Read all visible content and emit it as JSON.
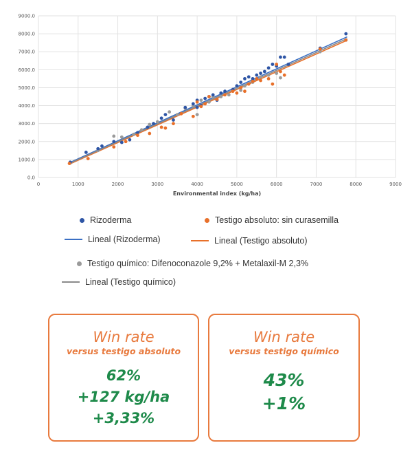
{
  "chart_data": {
    "type": "scatter",
    "xlabel": "Environmental index (kg/ha)",
    "xlim": [
      0,
      9000
    ],
    "ylim": [
      0,
      9000
    ],
    "xticks": [
      "0",
      "1000",
      "2000",
      "3000",
      "4000",
      "5000",
      "6000",
      "7000",
      "8000",
      "9000"
    ],
    "yticks": [
      "0.0",
      "1000.0",
      "2000.0",
      "3000.0",
      "4000.0",
      "5000.0",
      "6000.0",
      "7000.0",
      "8000.0",
      "9000.0"
    ],
    "grid": true,
    "legend_position": "bottom",
    "series": [
      {
        "name": "Rizoderma",
        "color": "#2e55a5",
        "points": [
          [
            800,
            850
          ],
          [
            1200,
            1400
          ],
          [
            1500,
            1600
          ],
          [
            1600,
            1750
          ],
          [
            1900,
            2000
          ],
          [
            2100,
            1950
          ],
          [
            2300,
            2100
          ],
          [
            2500,
            2500
          ],
          [
            2750,
            2800
          ],
          [
            2900,
            3000
          ],
          [
            3100,
            3300
          ],
          [
            3200,
            3500
          ],
          [
            3400,
            3200
          ],
          [
            3700,
            3900
          ],
          [
            3900,
            4100
          ],
          [
            4000,
            3900
          ],
          [
            4000,
            4300
          ],
          [
            4100,
            4000
          ],
          [
            4200,
            4400
          ],
          [
            4300,
            4500
          ],
          [
            4400,
            4600
          ],
          [
            4500,
            4300
          ],
          [
            4600,
            4700
          ],
          [
            4700,
            4800
          ],
          [
            4900,
            4900
          ],
          [
            5000,
            5100
          ],
          [
            5100,
            5300
          ],
          [
            5200,
            5500
          ],
          [
            5300,
            5600
          ],
          [
            5400,
            5500
          ],
          [
            5500,
            5700
          ],
          [
            5600,
            5800
          ],
          [
            5700,
            5900
          ],
          [
            5800,
            6100
          ],
          [
            5900,
            6300
          ],
          [
            6000,
            6200
          ],
          [
            6100,
            6700
          ],
          [
            6200,
            6700
          ],
          [
            6300,
            6300
          ],
          [
            7100,
            7200
          ],
          [
            7750,
            8000
          ]
        ]
      },
      {
        "name": "Testigo absoluto: sin curasemilla",
        "color": "#e8702a",
        "points": [
          [
            780,
            780
          ],
          [
            1250,
            1050
          ],
          [
            1900,
            1700
          ],
          [
            2200,
            2000
          ],
          [
            2500,
            2350
          ],
          [
            2800,
            2450
          ],
          [
            3100,
            2800
          ],
          [
            3200,
            2750
          ],
          [
            3400,
            3000
          ],
          [
            3600,
            3550
          ],
          [
            3900,
            3400
          ],
          [
            4000,
            4200
          ],
          [
            4100,
            3950
          ],
          [
            4200,
            4100
          ],
          [
            4300,
            4500
          ],
          [
            4500,
            4350
          ],
          [
            4700,
            4600
          ],
          [
            4900,
            4800
          ],
          [
            5000,
            4700
          ],
          [
            5100,
            5000
          ],
          [
            5200,
            4800
          ],
          [
            5300,
            5200
          ],
          [
            5400,
            5350
          ],
          [
            5500,
            5500
          ],
          [
            5600,
            5400
          ],
          [
            5800,
            5500
          ],
          [
            5900,
            5200
          ],
          [
            6000,
            6300
          ],
          [
            6100,
            5900
          ],
          [
            6200,
            5700
          ],
          [
            7100,
            7150
          ],
          [
            7750,
            7650
          ]
        ]
      },
      {
        "name": "Testigo químico: Difenoconazole 9,2% + Metalaxil-M 2,3%",
        "color": "#9a9a9a",
        "points": [
          [
            800,
            800
          ],
          [
            1500,
            1500
          ],
          [
            1900,
            2300
          ],
          [
            2100,
            2250
          ],
          [
            2400,
            2400
          ],
          [
            2600,
            2650
          ],
          [
            2800,
            2950
          ],
          [
            3000,
            3100
          ],
          [
            3300,
            3650
          ],
          [
            3500,
            3500
          ],
          [
            3700,
            3850
          ],
          [
            3900,
            4000
          ],
          [
            4000,
            3500
          ],
          [
            4100,
            4300
          ],
          [
            4300,
            4200
          ],
          [
            4400,
            4500
          ],
          [
            4600,
            4500
          ],
          [
            4800,
            4600
          ],
          [
            5000,
            5000
          ],
          [
            5100,
            4850
          ],
          [
            5200,
            5100
          ],
          [
            5400,
            5300
          ],
          [
            5600,
            5600
          ],
          [
            5800,
            5700
          ],
          [
            6000,
            5800
          ],
          [
            6100,
            5550
          ],
          [
            7100,
            7000
          ],
          [
            7750,
            7650
          ]
        ]
      }
    ],
    "trendlines": [
      {
        "name": "Lineal (Rizoderma)",
        "color": "#3a6fc4",
        "x": [
          780,
          7780
        ],
        "y": [
          820,
          7830
        ]
      },
      {
        "name": "Lineal (Testigo absoluto)",
        "color": "#e8702a",
        "x": [
          780,
          7780
        ],
        "y": [
          740,
          7640
        ]
      },
      {
        "name": "Lineal (Testigo químico)",
        "color": "#8a8a8a",
        "x": [
          780,
          7780
        ],
        "y": [
          780,
          7730
        ]
      }
    ]
  },
  "legend": {
    "rizoderma": "Rizoderma",
    "testigo_absoluto": "Testigo absoluto: sin curasemilla",
    "lineal_rizoderma": "Lineal (Rizoderma)",
    "lineal_absoluto": "Lineal (Testigo absoluto)",
    "testigo_quimico": "Testigo químico: Difenoconazole 9,2% + Metalaxil-M 2,3%",
    "lineal_quimico": "Lineal (Testigo químico)"
  },
  "cards": [
    {
      "title": "Win rate",
      "subtitle": "versus testigo absoluto",
      "stats": [
        "62%",
        "+127 kg/ha",
        "+3,33%"
      ]
    },
    {
      "title": "Win rate",
      "subtitle": "versus testigo químico",
      "stats": [
        "43%",
        "+1%"
      ]
    }
  ],
  "colors": {
    "accent": "#e87a3e",
    "stat": "#1e8a4a"
  }
}
